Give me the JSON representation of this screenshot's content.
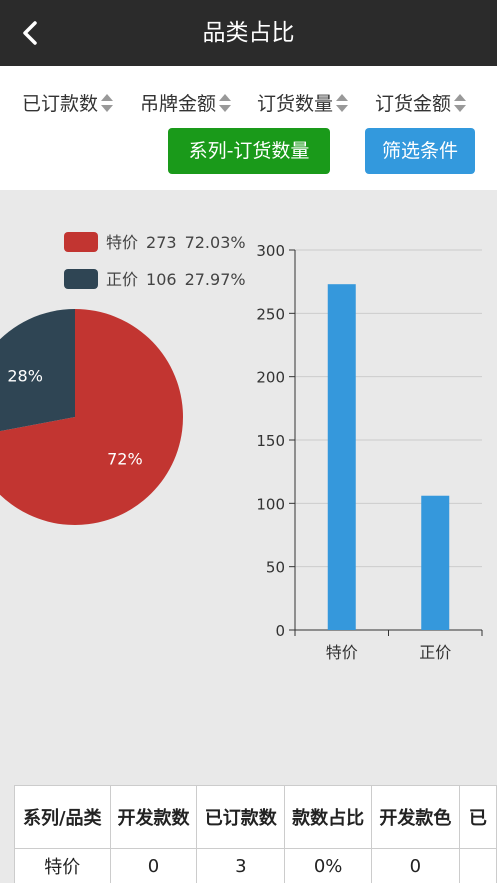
{
  "header": {
    "title": "品类占比"
  },
  "toolbar": {
    "sort_items": [
      {
        "label": "已订款数"
      },
      {
        "label": "吊牌金额"
      },
      {
        "label": "订货数量"
      },
      {
        "label": "订货金额"
      }
    ],
    "series_button": "系列-订货数量",
    "filter_button": "筛选条件"
  },
  "colors": {
    "header_bg": "#2b2b2b",
    "green_button": "#1a9a1a",
    "blue_button": "#3399dd",
    "pie_special": "#c23531",
    "pie_regular": "#2f4554",
    "bar": "#3598dc"
  },
  "legend": [
    {
      "name": "特价",
      "value": "273",
      "percent": "72.03%"
    },
    {
      "name": "正价",
      "value": "106",
      "percent": "27.97%"
    }
  ],
  "chart_data": [
    {
      "type": "pie",
      "slices": [
        {
          "name": "特价",
          "value": 273,
          "label": "72%"
        },
        {
          "name": "正价",
          "value": 106,
          "label": "28%"
        }
      ],
      "legend": "top"
    },
    {
      "type": "bar",
      "categories": [
        "特价",
        "正价"
      ],
      "values": [
        273,
        106
      ],
      "ylim": [
        0,
        300
      ],
      "yticks": [
        0,
        50,
        100,
        150,
        200,
        250,
        300
      ],
      "grid": true
    }
  ],
  "table": {
    "headers": [
      "系列/品类",
      "开发款数",
      "已订款数",
      "款数占比",
      "开发款色",
      "已"
    ],
    "rows": [
      [
        "特价",
        "0",
        "3",
        "0%",
        "0",
        ""
      ]
    ]
  }
}
